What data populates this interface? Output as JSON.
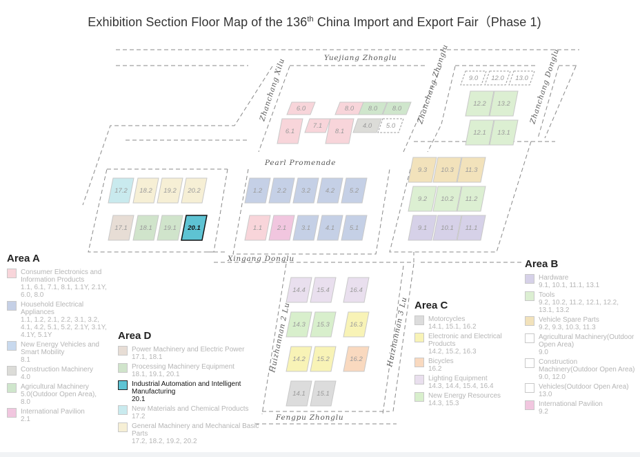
{
  "title": {
    "prefix": "Exhibition Section Floor Map of the 136",
    "sup": "th",
    "suffix": " China Import and Export Fair（Phase 1)"
  },
  "roads": {
    "yuejiang": "Yuejiang Zhonglu",
    "xiuxi": "Zhanchang Xilu",
    "zhonglu": "Zhanchang Zhonglu",
    "donglu": "Zhanchang Donglu",
    "pearl": "Pearl Promenade",
    "xingang": "Xingang Donglu",
    "huizhan2": "Huizhannan 2 Lu",
    "huizhan3": "Huizhannan 3 Lu",
    "fengpu": "Fengpu Zhonglu"
  },
  "colors": {
    "consumer": "#f8d5da",
    "household": "#c5d0e6",
    "energy_vehicle": "#c8d9ee",
    "construction": "#dcdcd8",
    "agri": "#cfe6cc",
    "intl": "#f1c6df",
    "power": "#e7ddd5",
    "processing": "#d0e4cb",
    "automation": "#5ec3d3",
    "materials": "#c9eaee",
    "general": "#f6efd5",
    "motorcycles": "#dcdcdc",
    "electronic": "#f8f3b6",
    "bicycles": "#f9d9bf",
    "lighting": "#e9dfee",
    "nev_resources": "#d8efcc",
    "hardware": "#d6d1e8",
    "tools": "#dcefd2",
    "spare_parts": "#f2e2bb",
    "empty": "#ffffff"
  },
  "halls": [
    {
      "id": "6.0",
      "color": "consumer"
    },
    {
      "id": "8.0",
      "color": "consumer"
    },
    {
      "id": "8.0",
      "color": "agri"
    },
    {
      "id": "8.0",
      "color": "agri"
    },
    {
      "id": "6.1",
      "color": "consumer"
    },
    {
      "id": "7.1",
      "color": "consumer"
    },
    {
      "id": "8.1",
      "color": "consumer"
    },
    {
      "id": "4.0",
      "color": "construction"
    },
    {
      "id": "5.0",
      "color": "empty"
    },
    {
      "id": "9.0",
      "color": "empty"
    },
    {
      "id": "12.0",
      "color": "empty"
    },
    {
      "id": "13.0",
      "color": "empty"
    },
    {
      "id": "12.2",
      "color": "tools"
    },
    {
      "id": "13.2",
      "color": "tools"
    },
    {
      "id": "12.1",
      "color": "tools"
    },
    {
      "id": "13.1",
      "color": "tools"
    },
    {
      "id": "17.2",
      "color": "materials"
    },
    {
      "id": "18.2",
      "color": "general"
    },
    {
      "id": "19.2",
      "color": "general"
    },
    {
      "id": "20.2",
      "color": "general"
    },
    {
      "id": "17.1",
      "color": "power"
    },
    {
      "id": "18.1",
      "color": "processing"
    },
    {
      "id": "19.1",
      "color": "processing"
    },
    {
      "id": "20.1",
      "color": "automation"
    },
    {
      "id": "1.2",
      "color": "household"
    },
    {
      "id": "2.2",
      "color": "household"
    },
    {
      "id": "3.2",
      "color": "household"
    },
    {
      "id": "4.2",
      "color": "household"
    },
    {
      "id": "5.2",
      "color": "household"
    },
    {
      "id": "1.1",
      "color": "consumer"
    },
    {
      "id": "2.1",
      "color": "intl"
    },
    {
      "id": "3.1",
      "color": "household"
    },
    {
      "id": "4.1",
      "color": "household"
    },
    {
      "id": "5.1",
      "color": "household"
    },
    {
      "id": "9.3",
      "color": "spare_parts"
    },
    {
      "id": "10.3",
      "color": "spare_parts"
    },
    {
      "id": "11.3",
      "color": "spare_parts"
    },
    {
      "id": "9.2",
      "color": "tools"
    },
    {
      "id": "10.2",
      "color": "tools"
    },
    {
      "id": "11.2",
      "color": "tools"
    },
    {
      "id": "9.1",
      "color": "hardware"
    },
    {
      "id": "10.1",
      "color": "hardware"
    },
    {
      "id": "11.1",
      "color": "hardware"
    },
    {
      "id": "14.4",
      "color": "lighting"
    },
    {
      "id": "15.4",
      "color": "lighting"
    },
    {
      "id": "16.4",
      "color": "lighting"
    },
    {
      "id": "14.3",
      "color": "nev_resources"
    },
    {
      "id": "15.3",
      "color": "nev_resources"
    },
    {
      "id": "16.3",
      "color": "electronic"
    },
    {
      "id": "14.2",
      "color": "electronic"
    },
    {
      "id": "15.2",
      "color": "electronic"
    },
    {
      "id": "16.2",
      "color": "bicycles"
    },
    {
      "id": "14.1",
      "color": "motorcycles"
    },
    {
      "id": "15.1",
      "color": "motorcycles"
    }
  ],
  "active_hall": "20.1",
  "areas": [
    {
      "name": "Area A",
      "items": [
        {
          "label": "Consumer Electronics and Information Products",
          "halls": "1.1, 6.1, 7.1, 8.1, 1.1Y, 2.1Y, 6.0, 8.0",
          "color": "consumer"
        },
        {
          "label": "Household Electrical Appliances",
          "halls": "1.1, 1.2, 2.1, 2.2, 3.1, 3.2, 4.1, 4.2, 5.1, 5.2, 2.1Y, 3.1Y, 4.1Y, 5.1Y",
          "color": "household"
        },
        {
          "label": "New Energy Vehicles and Smart Mobility",
          "halls": "8.1",
          "color": "energy_vehicle"
        },
        {
          "label": "Construction Machinery",
          "halls": "4.0",
          "color": "construction"
        },
        {
          "label": "Agricultural Machinery",
          "halls": "5.0(Outdoor Open Area), 8.0",
          "color": "agri"
        },
        {
          "label": "International Pavilion",
          "halls": "2.1",
          "color": "intl"
        }
      ]
    },
    {
      "name": "Area D",
      "items": [
        {
          "label": "Power Machinery and Electric Power",
          "halls": "17.1, 18.1",
          "color": "power"
        },
        {
          "label": "Processing Machinery Equipment",
          "halls": "18.1, 19.1, 20.1",
          "color": "processing"
        },
        {
          "label": "Industrial Automation and Intelligent Manufacturing",
          "halls": "20.1",
          "color": "automation",
          "active": true
        },
        {
          "label": "New Materials and Chemical Products",
          "halls": "17.2",
          "color": "materials"
        },
        {
          "label": "General Machinery and Mechanical Basic Parts",
          "halls": "17.2, 18.2, 19.2, 20.2",
          "color": "general"
        }
      ]
    },
    {
      "name": "Area C",
      "items": [
        {
          "label": "Motorcycles",
          "halls": "14.1, 15.1, 16.2",
          "color": "motorcycles"
        },
        {
          "label": "Electronic and Electrical Products",
          "halls": "14.2, 15.2, 16.3",
          "color": "electronic"
        },
        {
          "label": "Bicycles",
          "halls": "16.2",
          "color": "bicycles"
        },
        {
          "label": "Lighting Equipment",
          "halls": "14.3, 14.4, 15.4, 16.4",
          "color": "lighting"
        },
        {
          "label": "New Energy Resources",
          "halls": "14.3, 15.3",
          "color": "nev_resources"
        }
      ]
    },
    {
      "name": "Area B",
      "items": [
        {
          "label": "Hardware",
          "halls": "9.1, 10.1, 11.1, 13.1",
          "color": "hardware"
        },
        {
          "label": "Tools",
          "halls": "9.2, 10.2, 11.2, 12.1, 12.2, 13.1, 13.2",
          "color": "tools"
        },
        {
          "label": "Vehicle Spare Parts",
          "halls": "9.2, 9.3, 10.3, 11.3",
          "color": "spare_parts"
        },
        {
          "label": "Agricultural Machinery(Outdoor Open Area)",
          "halls": "9.0",
          "color": "empty"
        },
        {
          "label": "Construction Machinery(Outdoor Open Area)",
          "halls": "9.0, 12.0",
          "color": "empty"
        },
        {
          "label": "Vehicles(Outdoor Open Area)",
          "halls": "13.0",
          "color": "empty"
        },
        {
          "label": "International Pavilion",
          "halls": "9.2",
          "color": "intl"
        }
      ]
    }
  ]
}
